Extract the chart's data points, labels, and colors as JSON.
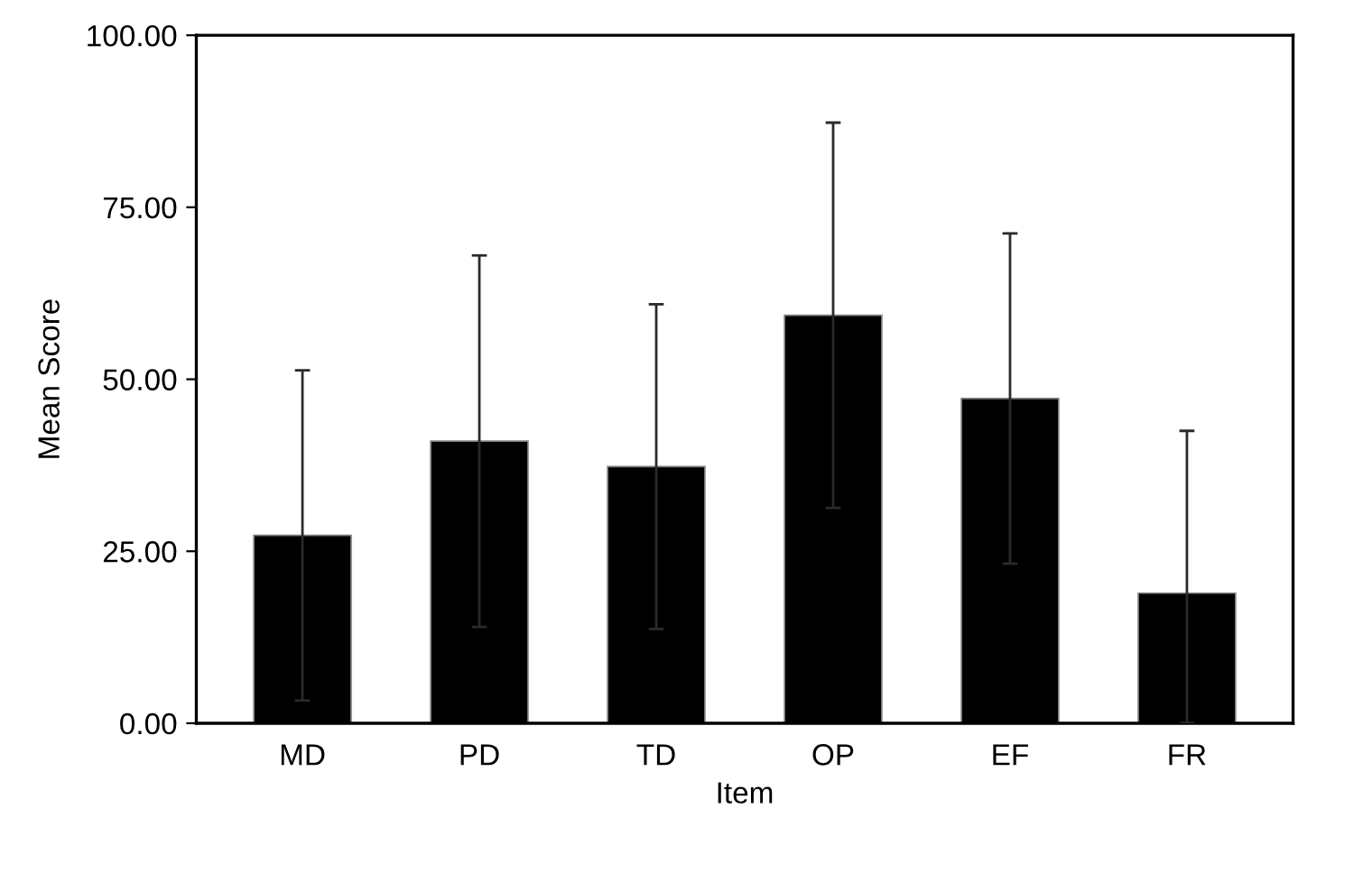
{
  "chart_data": {
    "type": "bar",
    "xlabel": "Item",
    "ylabel": "Mean Score",
    "categories": [
      "MD",
      "PD",
      "TD",
      "OP",
      "EF",
      "FR"
    ],
    "values": [
      27.3,
      41.0,
      37.3,
      59.3,
      47.2,
      18.9
    ],
    "errors": [
      24,
      27,
      23.6,
      28,
      24,
      [
        0,
        42.5
      ]
    ],
    "color": "#000000",
    "ylim": [
      0,
      100
    ],
    "yticks": [
      {
        "value": 0,
        "label": "0.00"
      },
      {
        "value": 25,
        "label": "25.00"
      },
      {
        "value": 50,
        "label": "50.00"
      },
      {
        "value": 75,
        "label": "75.00"
      },
      {
        "value": 100,
        "label": "100.00"
      }
    ],
    "grid": false,
    "legend": false
  }
}
